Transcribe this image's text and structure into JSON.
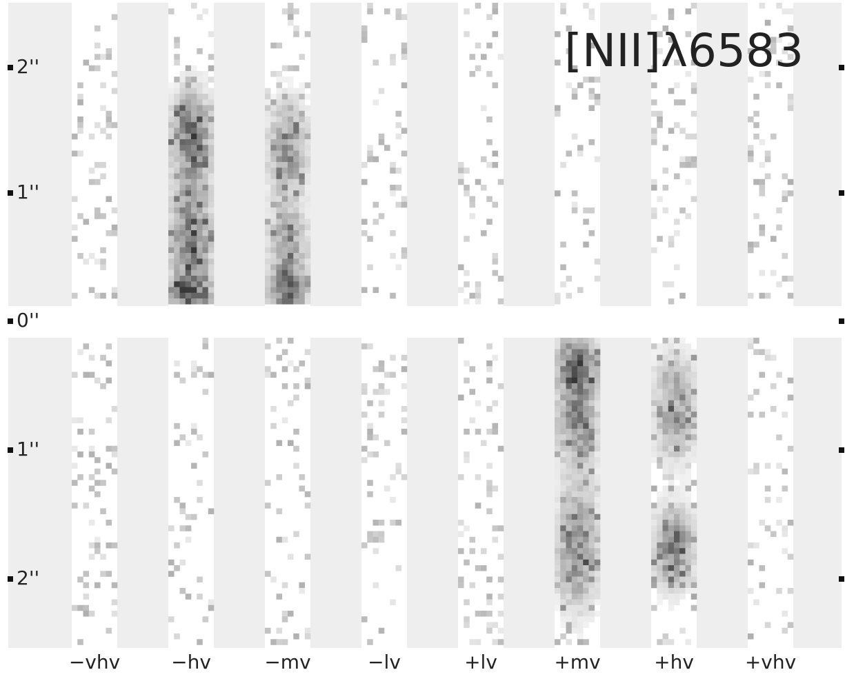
{
  "title": "[NII]λ6583",
  "y_labels": [
    "2''",
    "1''",
    "0''",
    "1''",
    "2''"
  ],
  "columns": [
    "−vhv",
    "−hv",
    "−mv",
    "−lv",
    "+lv",
    "+mv",
    "+hv",
    "+vhv"
  ]
}
